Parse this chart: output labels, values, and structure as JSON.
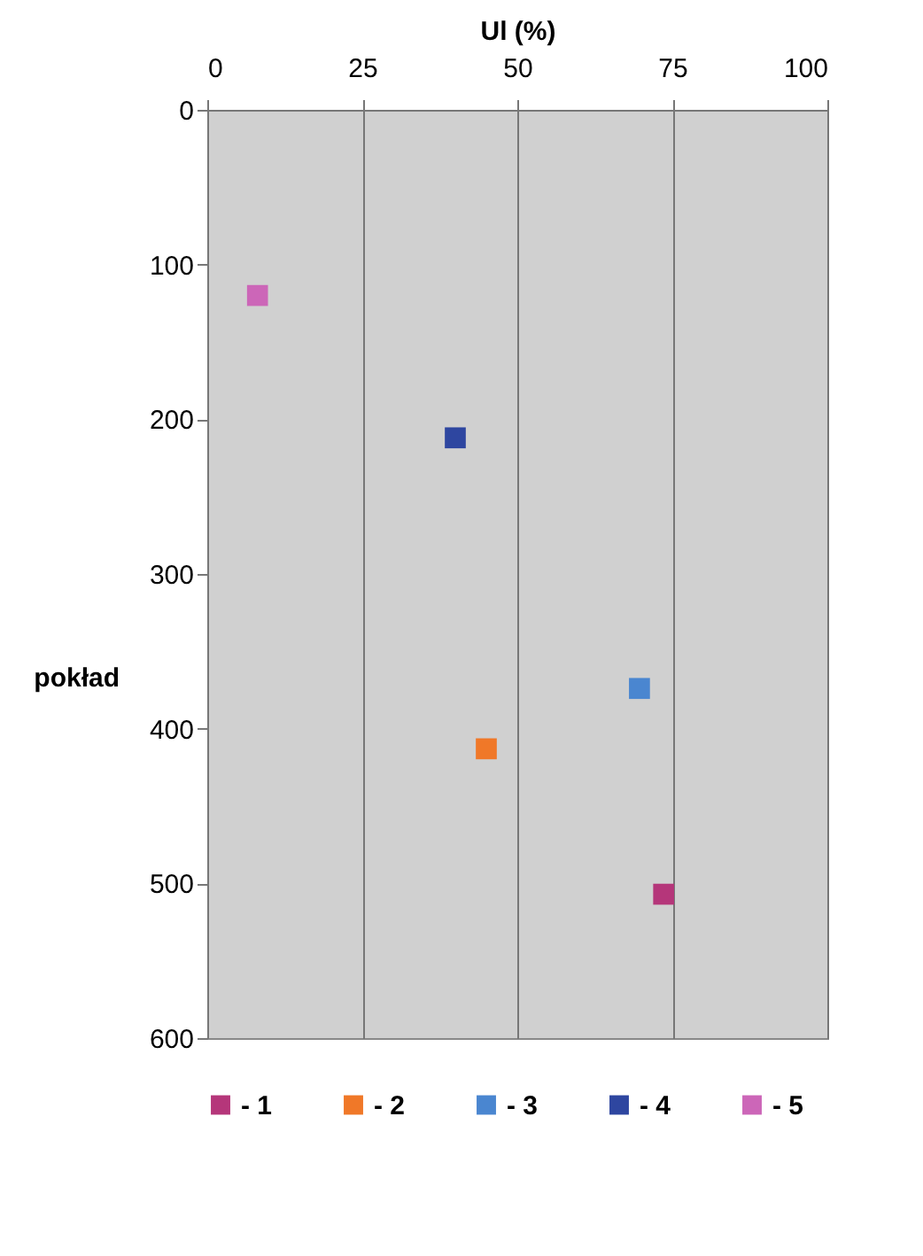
{
  "chart_data": {
    "type": "scatter",
    "xlabel": "Ul (%)",
    "ylabel": "pokład",
    "xlim": [
      0,
      100
    ],
    "xticks": [
      0,
      25,
      50,
      75,
      100
    ],
    "ylim": [
      600,
      0
    ],
    "yticks": [
      0,
      100,
      200,
      300,
      400,
      500,
      600
    ],
    "grid": "x",
    "legend": "bottom",
    "marker": "square",
    "series": [
      {
        "name": "- 1",
        "color": "#b5367a",
        "x": [
          73.6
        ],
        "values": [
          507
        ]
      },
      {
        "name": "- 2",
        "color": "#f07828",
        "x": [
          45
        ],
        "values": [
          413
        ]
      },
      {
        "name": "- 3",
        "color": "#4a86d0",
        "x": [
          69.7
        ],
        "values": [
          374
        ]
      },
      {
        "name": "- 4",
        "color": "#2e46a0",
        "x": [
          40
        ],
        "values": [
          212
        ]
      },
      {
        "name": "- 5",
        "color": "#cc66b8",
        "x": [
          8.1
        ],
        "values": [
          120
        ]
      }
    ]
  }
}
